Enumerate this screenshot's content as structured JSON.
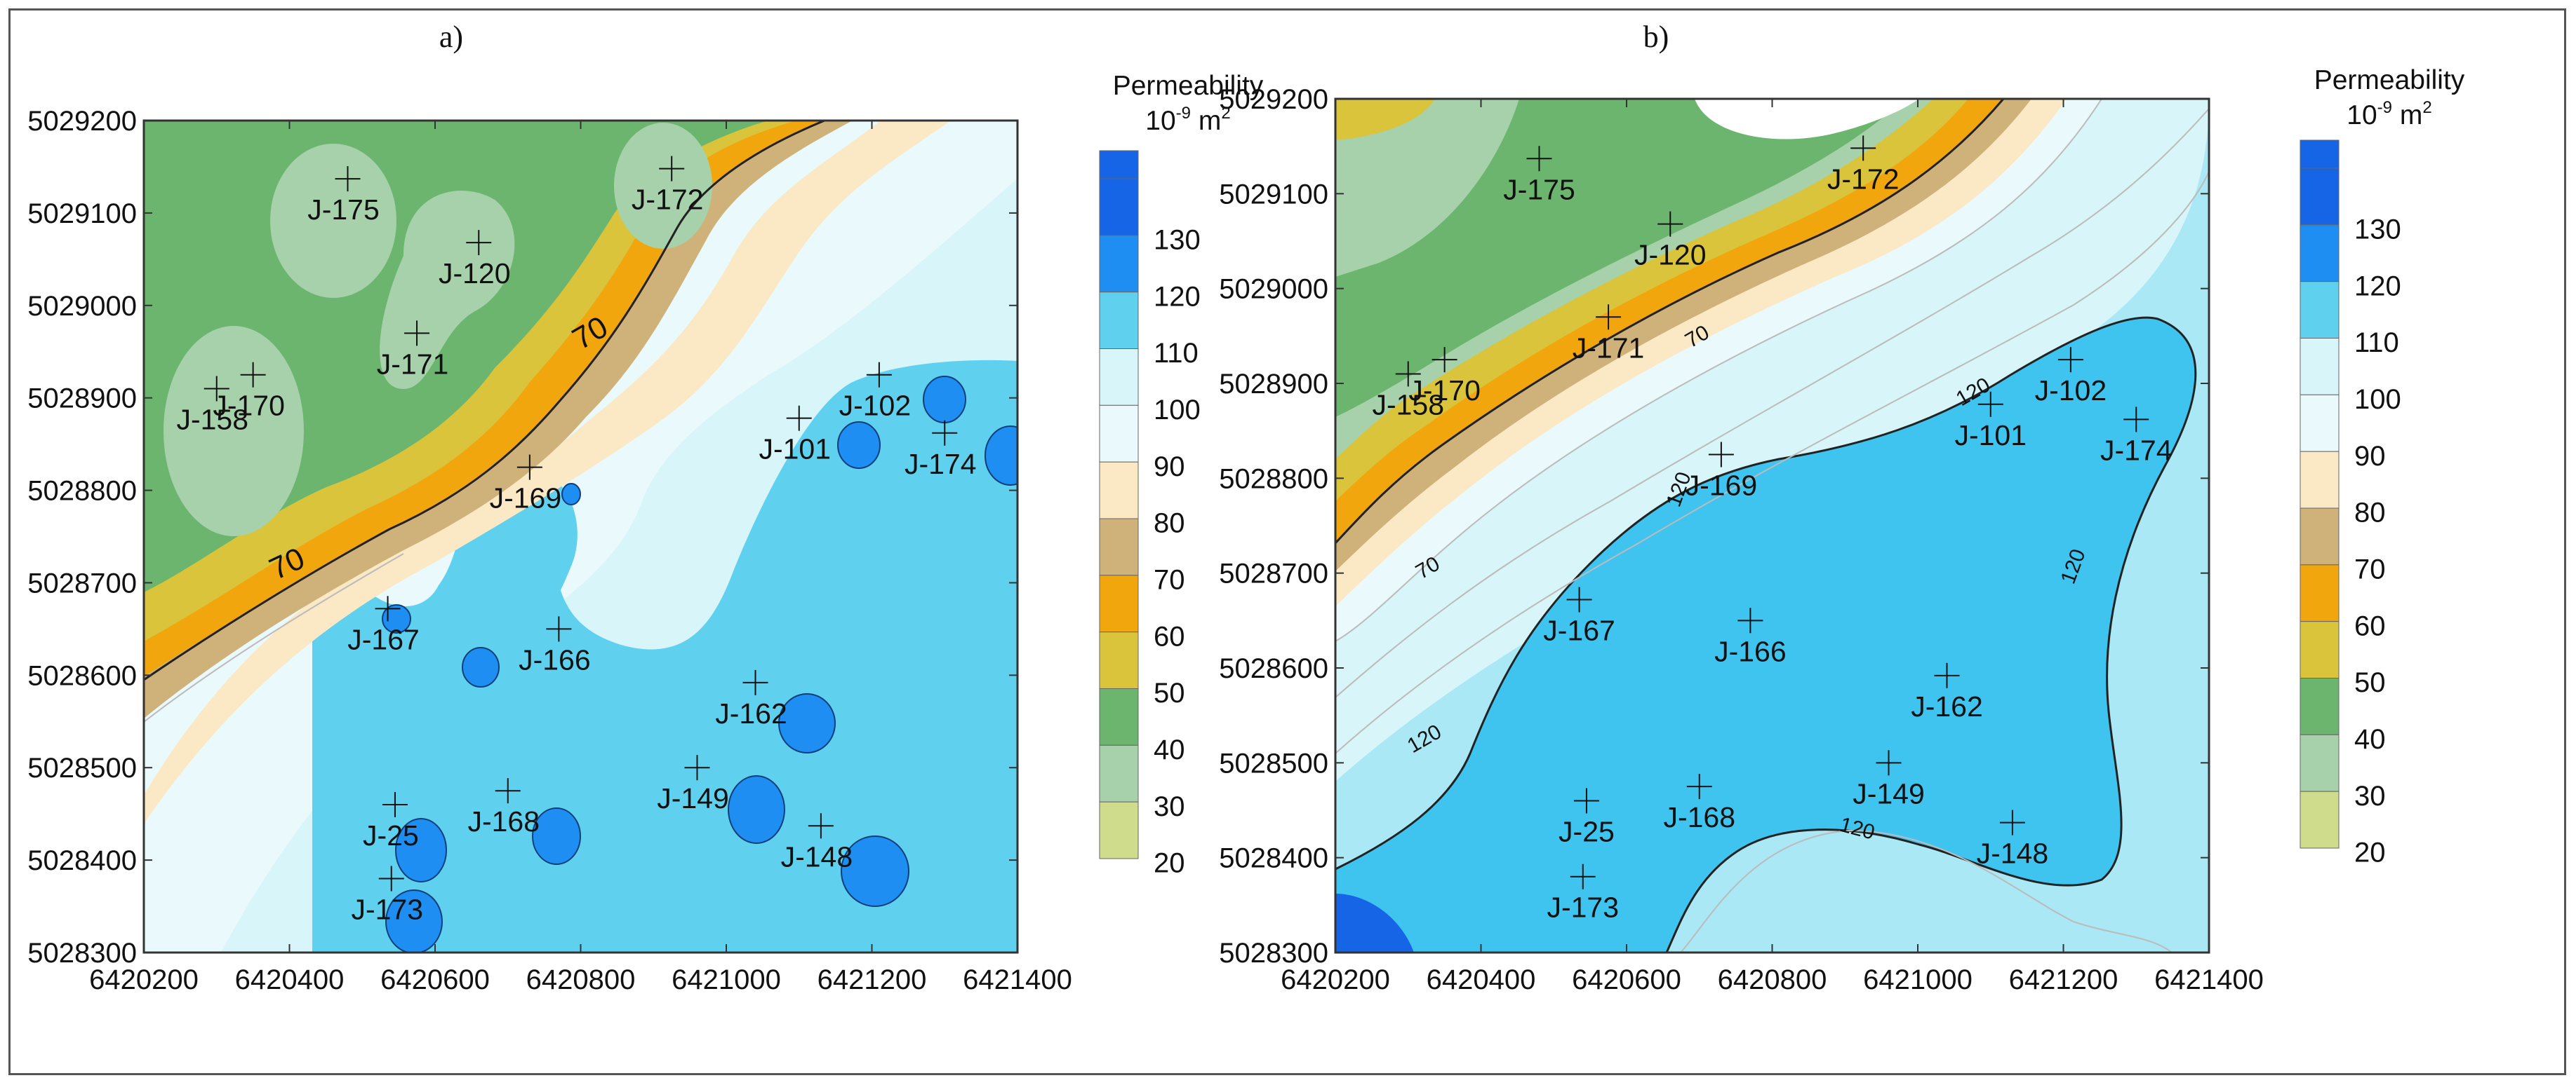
{
  "panels": [
    {
      "id": "a",
      "label": "a)"
    },
    {
      "id": "b",
      "label": "b)"
    }
  ],
  "axes": {
    "x_ticks": [
      "6420200",
      "6420400",
      "6420600",
      "6420800",
      "6421000",
      "6421200",
      "6421400"
    ],
    "y_ticks": [
      "5029200",
      "5029100",
      "5029000",
      "5028900",
      "5028800",
      "5028700",
      "5028600",
      "5028500",
      "5028400",
      "5028300"
    ],
    "x_range": [
      6420200,
      6421400
    ],
    "y_range": [
      5028300,
      5029200
    ]
  },
  "legend": {
    "title": "Permeability",
    "unit_base": "10",
    "unit_exp": "-9",
    "unit_tail": " m",
    "unit_sq": "2",
    "levels": [
      "130",
      "120",
      "110",
      "100",
      "90",
      "80",
      "70",
      "60",
      "50",
      "40",
      "30",
      "20"
    ],
    "colors": [
      "#1565e6",
      "#1e8ef2",
      "#5fd1ef",
      "#d8f5fa",
      "#eaf9fb",
      "#fbe8c4",
      "#cfb27a",
      "#f1a60d",
      "#d9c43b",
      "#6cb56f",
      "#a7d1ab",
      "#cfdc8b"
    ]
  },
  "wells": [
    {
      "name": "J-175",
      "x": 6420480,
      "y": 5029137
    },
    {
      "name": "J-120",
      "x": 6420660,
      "y": 5029068
    },
    {
      "name": "J-172",
      "x": 6420925,
      "y": 5029148
    },
    {
      "name": "J-171",
      "x": 6420575,
      "y": 5028970
    },
    {
      "name": "J-170",
      "x": 6420350,
      "y": 5028925
    },
    {
      "name": "J-158",
      "x": 6420300,
      "y": 5028910
    },
    {
      "name": "J-102",
      "x": 6421210,
      "y": 5028925
    },
    {
      "name": "J-101",
      "x": 6421100,
      "y": 5028878
    },
    {
      "name": "J-174",
      "x": 6421300,
      "y": 5028862
    },
    {
      "name": "J-169",
      "x": 6420730,
      "y": 5028825
    },
    {
      "name": "J-167",
      "x": 6420535,
      "y": 5028672
    },
    {
      "name": "J-166",
      "x": 6420770,
      "y": 5028650
    },
    {
      "name": "J-162",
      "x": 6421040,
      "y": 5028592
    },
    {
      "name": "J-149",
      "x": 6420960,
      "y": 5028500
    },
    {
      "name": "J-25",
      "x": 6420545,
      "y": 5028460
    },
    {
      "name": "J-168",
      "x": 6420700,
      "y": 5028475
    },
    {
      "name": "J-148",
      "x": 6421130,
      "y": 5028437
    },
    {
      "name": "J-173",
      "x": 6420540,
      "y": 5028380
    }
  ],
  "contour_labels": {
    "a": [
      "70",
      "70"
    ],
    "b": [
      "70",
      "70",
      "120",
      "120",
      "120",
      "120",
      "120"
    ]
  }
}
